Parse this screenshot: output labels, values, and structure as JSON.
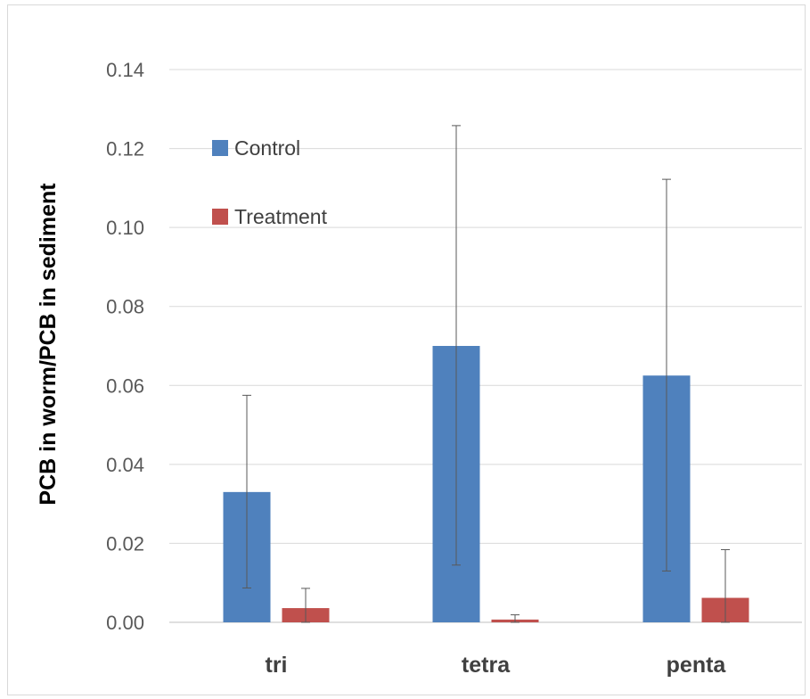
{
  "chart_data": {
    "type": "bar",
    "title": "",
    "xlabel": "",
    "ylabel": "PCB in worm/PCB in sediment",
    "ylim": [
      0,
      0.14
    ],
    "yticks": [
      "0.00",
      "0.02",
      "0.04",
      "0.06",
      "0.08",
      "0.10",
      "0.12",
      "0.14"
    ],
    "grid": true,
    "legend": "top-left",
    "categories": [
      "tri",
      "tetra",
      "penta"
    ],
    "series": [
      {
        "name": "Control",
        "color": "#4f81bd",
        "values": [
          0.033,
          0.07,
          0.0625
        ],
        "error_low": [
          0.0087,
          0.0145,
          0.013
        ],
        "error_high": [
          0.0575,
          0.1258,
          0.1122
        ]
      },
      {
        "name": "Treatment",
        "color": "#c0504d",
        "values": [
          0.0036,
          0.0007,
          0.0062
        ],
        "error_low": [
          0.0,
          0.0,
          0.0
        ],
        "error_high": [
          0.0086,
          0.0019,
          0.0184
        ]
      }
    ]
  }
}
